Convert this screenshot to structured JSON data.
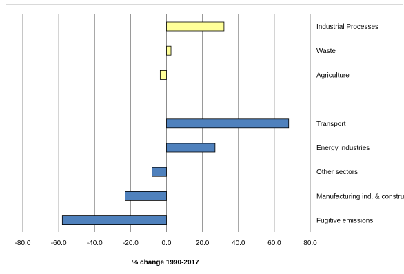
{
  "chart_data": {
    "type": "bar",
    "orientation": "horizontal",
    "title": "",
    "xlabel": "% change 1990-2017",
    "ylabel": "",
    "xlim": [
      -80,
      80
    ],
    "x_ticks": [
      "-80.0",
      "-60.0",
      "-40.0",
      "-20.0",
      "0.0",
      "20.0",
      "40.0",
      "60.0",
      "80.0"
    ],
    "grid": "vertical",
    "legend": "none",
    "groups": [
      {
        "color": "#ffff99",
        "items": [
          {
            "label": "Industrial Processes",
            "value": 32
          },
          {
            "label": "Waste",
            "value": 2.5
          },
          {
            "label": "Agriculture",
            "value": -3.5
          }
        ]
      },
      {
        "color": "#4f81bd",
        "items": [
          {
            "label": "Transport",
            "value": 68
          },
          {
            "label": "Energy industries",
            "value": 27
          },
          {
            "label": "Other sectors",
            "value": -8
          },
          {
            "label": "Manufacturing ind. & construction",
            "value": -23
          },
          {
            "label": "Fugitive emissions",
            "value": -58
          }
        ]
      }
    ]
  }
}
